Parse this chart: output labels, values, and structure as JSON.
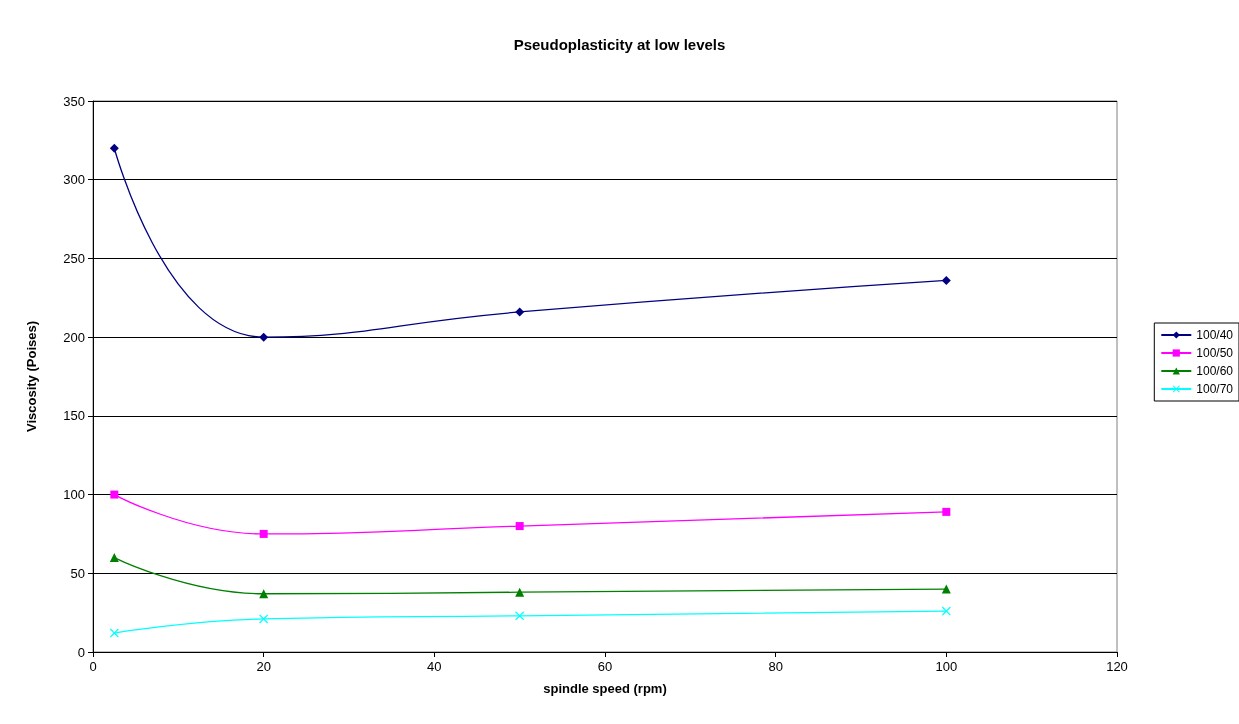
{
  "chart_data": {
    "type": "line",
    "title": "Pseudoplasticity at low levels",
    "xlabel": "spindle speed (rpm)",
    "ylabel": "Viscosity (Poises)",
    "xlim": [
      0,
      120
    ],
    "xticks": [
      0,
      20,
      40,
      60,
      80,
      100,
      120
    ],
    "ylim": [
      0,
      350
    ],
    "yticks": [
      0,
      50,
      100,
      150,
      200,
      250,
      300,
      350
    ],
    "grid": "y",
    "legend": "right",
    "x": [
      2.5,
      20,
      50,
      100
    ],
    "series": [
      {
        "name": "100/40",
        "color": "#000080",
        "marker": "diamond",
        "values": [
          320,
          200,
          216,
          236
        ]
      },
      {
        "name": "100/50",
        "color": "#ff00ff",
        "marker": "square",
        "values": [
          100,
          75,
          80,
          89
        ]
      },
      {
        "name": "100/60",
        "color": "#008000",
        "marker": "triangle",
        "values": [
          60,
          37,
          38,
          40
        ]
      },
      {
        "name": "100/70",
        "color": "#00ffff",
        "marker": "cross",
        "values": [
          12,
          21,
          23,
          26
        ]
      }
    ]
  }
}
